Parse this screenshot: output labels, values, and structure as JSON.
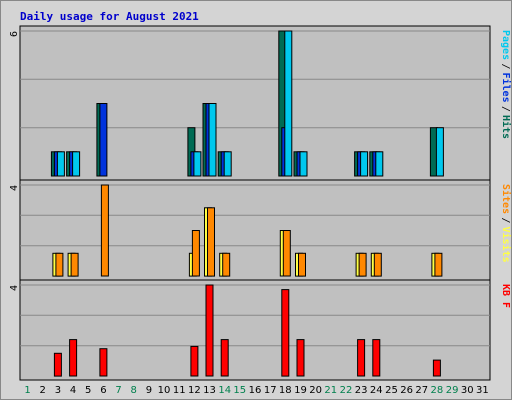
{
  "chart_data": {
    "type": "bar",
    "title": "Daily usage for August 2021",
    "categories": [
      "1",
      "2",
      "3",
      "4",
      "5",
      "6",
      "7",
      "8",
      "9",
      "10",
      "11",
      "12",
      "13",
      "14",
      "15",
      "16",
      "17",
      "18",
      "19",
      "20",
      "21",
      "22",
      "23",
      "24",
      "25",
      "26",
      "27",
      "28",
      "29",
      "30",
      "31"
    ],
    "weekend_days": [
      "1",
      "7",
      "8",
      "14",
      "15",
      "21",
      "22",
      "28",
      "29"
    ],
    "colors": {
      "title": "#0000cc",
      "hits": "#006b54",
      "files": "#0033dd",
      "pages": "#00c8ee",
      "visits": "#ffff44",
      "sites": "#ff8800",
      "kbytes": "#ff0000",
      "weekday_label": "#000000",
      "weekend_label": "#00804d",
      "plot_bg": "#c0c0c0",
      "frame_bg": "#d4d4d4"
    },
    "panels": [
      {
        "id": "hits-files-pages",
        "ymax_label": "6",
        "ylim": [
          0,
          6
        ],
        "legend": [
          {
            "name": "Pages",
            "color": "#00c8ee"
          },
          {
            "name": "Files",
            "color": "#0033dd"
          },
          {
            "name": "Hits",
            "color": "#006b54"
          }
        ],
        "series": [
          {
            "name": "Hits",
            "color": "#006b54",
            "values": [
              0,
              0,
              1,
              1,
              0,
              3,
              0,
              0,
              0,
              0,
              0,
              2,
              3,
              1,
              0,
              0,
              0,
              6,
              1,
              0,
              0,
              0,
              1,
              1,
              0,
              0,
              0,
              2,
              0,
              0,
              0
            ]
          },
          {
            "name": "Files",
            "color": "#0033dd",
            "values": [
              0,
              0,
              1,
              1,
              0,
              3,
              0,
              0,
              0,
              0,
              0,
              1,
              3,
              1,
              0,
              0,
              0,
              2,
              1,
              0,
              0,
              0,
              1,
              1,
              0,
              0,
              0,
              0,
              0,
              0,
              0
            ]
          },
          {
            "name": "Pages",
            "color": "#00c8ee",
            "values": [
              0,
              0,
              1,
              1,
              0,
              0,
              0,
              0,
              0,
              0,
              0,
              1,
              3,
              1,
              0,
              0,
              0,
              6,
              1,
              0,
              0,
              0,
              1,
              1,
              0,
              0,
              0,
              2,
              0,
              0,
              0
            ]
          }
        ]
      },
      {
        "id": "visits-sites",
        "ymax_label": "4",
        "ylim": [
          0,
          4
        ],
        "legend": [
          {
            "name": "Sites",
            "color": "#ff8800"
          },
          {
            "name": "Visits",
            "color": "#ffff44"
          }
        ],
        "series": [
          {
            "name": "Visits",
            "color": "#ffff44",
            "values": [
              0,
              0,
              1,
              1,
              0,
              0,
              0,
              0,
              0,
              0,
              0,
              1,
              3,
              1,
              0,
              0,
              0,
              2,
              1,
              0,
              0,
              0,
              1,
              1,
              0,
              0,
              0,
              1,
              0,
              0,
              0
            ]
          },
          {
            "name": "Sites",
            "color": "#ff8800",
            "values": [
              0,
              0,
              1,
              1,
              0,
              4,
              0,
              0,
              0,
              0,
              0,
              2,
              3,
              1,
              0,
              0,
              0,
              2,
              1,
              0,
              0,
              0,
              1,
              1,
              0,
              0,
              0,
              1,
              0,
              0,
              0
            ]
          }
        ]
      },
      {
        "id": "kbytes",
        "ymax_label": "4",
        "ylim": [
          0,
          4
        ],
        "legend": [
          {
            "name": "KB F",
            "color": "#ff0000"
          }
        ],
        "series": [
          {
            "name": "KB F",
            "color": "#ff0000",
            "values": [
              0,
              0,
              1,
              1.6,
              0,
              1.2,
              0,
              0,
              0,
              0,
              0,
              1.3,
              4,
              1.6,
              0,
              0,
              0,
              3.8,
              1.6,
              0,
              0,
              0,
              1.6,
              1.6,
              0,
              0,
              0,
              0.7,
              0,
              0,
              0
            ]
          }
        ]
      }
    ]
  }
}
